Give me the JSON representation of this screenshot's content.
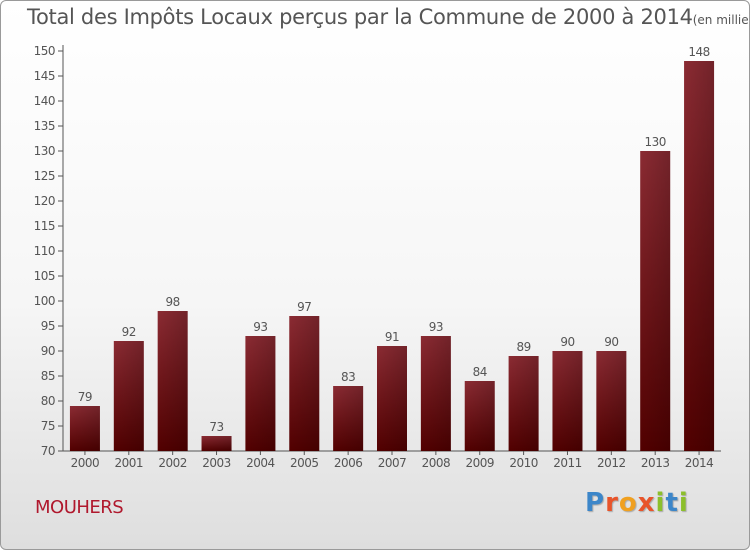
{
  "chart_data": {
    "type": "bar",
    "title": "Total des Impôts Locaux perçus par la Commune de 2000 à 2014",
    "unit_label": "(en milliers d'€)",
    "xlabel": "",
    "ylabel": "",
    "categories": [
      "2000",
      "2001",
      "2002",
      "2003",
      "2004",
      "2005",
      "2006",
      "2007",
      "2008",
      "2009",
      "2010",
      "2011",
      "2012",
      "2013",
      "2014"
    ],
    "values": [
      79,
      92,
      98,
      73,
      93,
      97,
      83,
      91,
      93,
      84,
      89,
      90,
      90,
      130,
      148
    ],
    "ylim": [
      70,
      150
    ],
    "yticks": [
      70,
      75,
      80,
      85,
      90,
      95,
      100,
      105,
      110,
      115,
      120,
      125,
      130,
      135,
      140,
      145,
      150
    ],
    "grid": false,
    "legend": "none",
    "colors": {
      "bar_top": "#8b2b33",
      "bar_bottom": "#520000",
      "axis": "#555555",
      "text": "#555555"
    }
  },
  "footer": {
    "commune": "MOUHERS",
    "brand_letters": [
      {
        "ch": "P",
        "color": "#3c86c9"
      },
      {
        "ch": "r",
        "color": "#e8542a"
      },
      {
        "ch": "o",
        "color": "#f0a020"
      },
      {
        "ch": "x",
        "color": "#e8542a"
      },
      {
        "ch": "i",
        "color": "#8cbf2b"
      },
      {
        "ch": "t",
        "color": "#3c86c9"
      },
      {
        "ch": "i",
        "color": "#8cbf2b"
      }
    ]
  }
}
